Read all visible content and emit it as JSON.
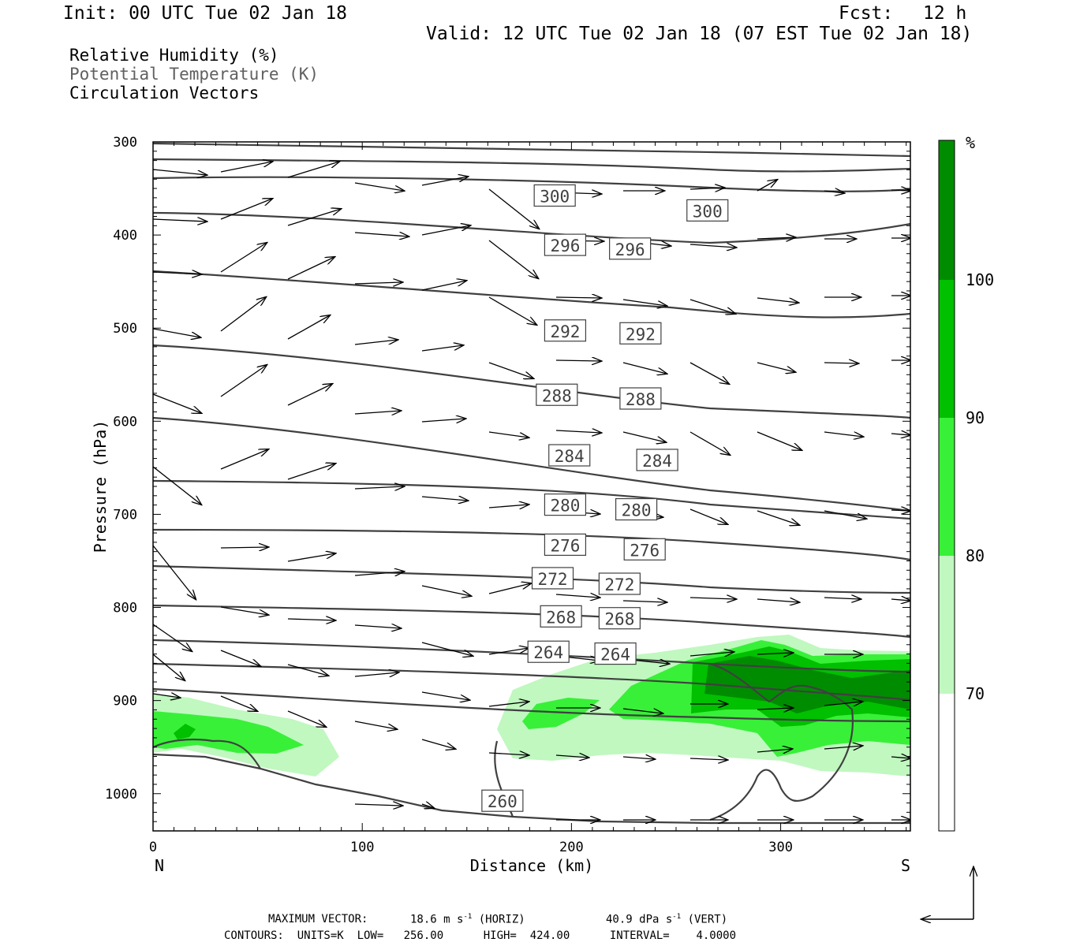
{
  "header": {
    "init": "Init: 00 UTC Tue 02 Jan 18",
    "fcst_label": "Fcst:",
    "fcst_value": "12 h",
    "valid": "Valid: 12 UTC Tue 02 Jan 18 (07 EST Tue 02 Jan 18)"
  },
  "legend": {
    "rh": "Relative Humidity (%)",
    "theta": "Potential Temperature (K)",
    "vectors": "Circulation Vectors"
  },
  "footer": {
    "max_vector_label": "MAXIMUM VECTOR:",
    "max_vector_horiz": "18.6 m s",
    "horiz_tag": "(HORIZ)",
    "max_vector_vert": "40.9 dPa s",
    "vert_tag": "(VERT)",
    "exp": "-1",
    "contours": "CONTOURS:  UNITS=K  LOW=   256.00      HIGH=  424.00      INTERVAL=    4.0000"
  },
  "colors": {
    "rh_70": "#c0f8c0",
    "rh_80": "#38f038",
    "rh_90": "#00c000",
    "rh_100": "#008c00",
    "theta_line": "#404040"
  },
  "chart_data": {
    "type": "cross-section",
    "xlabel": "Distance (km)",
    "ylabel": "Pressure (hPa)",
    "x_range": [
      0,
      362
    ],
    "y_range": [
      300,
      1040
    ],
    "x_ticks": [
      0,
      100,
      200,
      300
    ],
    "y_ticks": [
      300,
      400,
      500,
      600,
      700,
      800,
      900,
      1000
    ],
    "x_end_labels": {
      "left": "N",
      "right": "S"
    },
    "colorbar": {
      "unit": "%",
      "levels": [
        70,
        80,
        90,
        100
      ]
    },
    "theta_labels": [
      {
        "value": "300",
        "x": 192,
        "p": 358
      },
      {
        "value": "300",
        "x": 265,
        "p": 374
      },
      {
        "value": "296",
        "x": 197,
        "p": 411
      },
      {
        "value": "296",
        "x": 228,
        "p": 415
      },
      {
        "value": "292",
        "x": 197,
        "p": 503
      },
      {
        "value": "292",
        "x": 233,
        "p": 506
      },
      {
        "value": "288",
        "x": 193,
        "p": 572
      },
      {
        "value": "288",
        "x": 233,
        "p": 576
      },
      {
        "value": "284",
        "x": 199,
        "p": 637
      },
      {
        "value": "284",
        "x": 241,
        "p": 642
      },
      {
        "value": "280",
        "x": 197,
        "p": 690
      },
      {
        "value": "280",
        "x": 231,
        "p": 695
      },
      {
        "value": "276",
        "x": 197,
        "p": 733
      },
      {
        "value": "276",
        "x": 235,
        "p": 738
      },
      {
        "value": "272",
        "x": 191,
        "p": 769
      },
      {
        "value": "272",
        "x": 223,
        "p": 775
      },
      {
        "value": "268",
        "x": 195,
        "p": 810
      },
      {
        "value": "268",
        "x": 223,
        "p": 812
      },
      {
        "value": "264",
        "x": 189,
        "p": 848
      },
      {
        "value": "264",
        "x": 221,
        "p": 850
      },
      {
        "value": "260",
        "x": 167,
        "p": 1008
      }
    ]
  }
}
